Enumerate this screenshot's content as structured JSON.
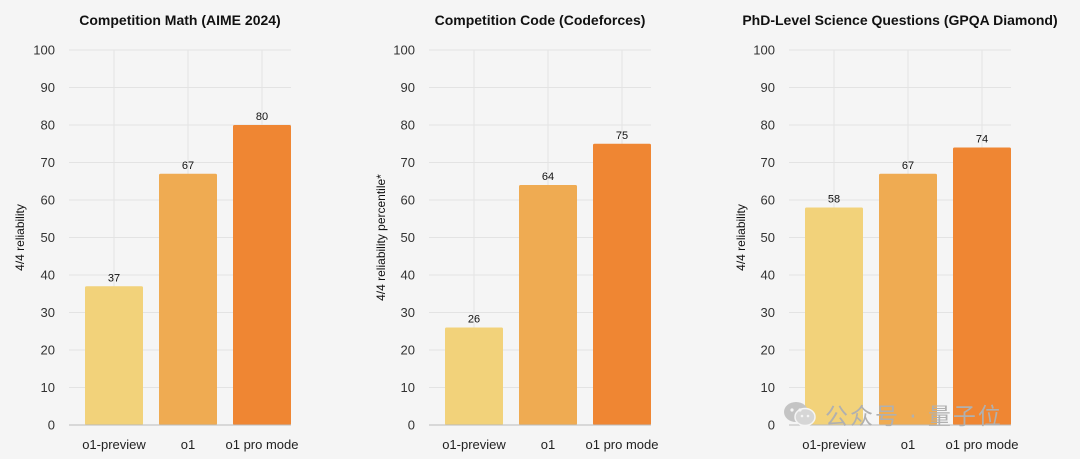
{
  "chart_data": [
    {
      "type": "bar",
      "title": "Competition Math (AIME 2024)",
      "ylabel": "4/4 reliability",
      "xlabel": "",
      "categories": [
        "o1-preview",
        "o1",
        "o1 pro mode"
      ],
      "values": [
        37,
        67,
        80
      ],
      "value_labels": [
        "37",
        "67",
        "80"
      ],
      "ylim": [
        0,
        100
      ],
      "yticks": [
        "0",
        "10",
        "20",
        "30",
        "40",
        "50",
        "60",
        "70",
        "80",
        "90",
        "100"
      ],
      "colors": [
        "#f2d27a",
        "#efab52",
        "#ef8633"
      ],
      "grid": true
    },
    {
      "type": "bar",
      "title": "Competition Code (Codeforces)",
      "ylabel": "4/4 reliability percentile*",
      "xlabel": "",
      "categories": [
        "o1-preview",
        "o1",
        "o1 pro mode"
      ],
      "values": [
        26,
        64,
        75
      ],
      "value_labels": [
        "26",
        "64",
        "75"
      ],
      "ylim": [
        0,
        100
      ],
      "yticks": [
        "0",
        "10",
        "20",
        "30",
        "40",
        "50",
        "60",
        "70",
        "80",
        "90",
        "100"
      ],
      "colors": [
        "#f2d27a",
        "#efab52",
        "#ef8633"
      ],
      "grid": true
    },
    {
      "type": "bar",
      "title": "PhD-Level Science Questions (GPQA Diamond)",
      "ylabel": "4/4 reliability",
      "xlabel": "",
      "categories": [
        "o1-preview",
        "o1",
        "o1 pro mode"
      ],
      "values": [
        58,
        67,
        74
      ],
      "value_labels": [
        "58",
        "67",
        "74"
      ],
      "ylim": [
        0,
        100
      ],
      "yticks": [
        "0",
        "10",
        "20",
        "30",
        "40",
        "50",
        "60",
        "70",
        "80",
        "90",
        "100"
      ],
      "colors": [
        "#f2d27a",
        "#efab52",
        "#ef8633"
      ],
      "grid": true
    }
  ],
  "watermark": {
    "text": "公众号 · 量子位",
    "icon": "wechat-icon"
  }
}
